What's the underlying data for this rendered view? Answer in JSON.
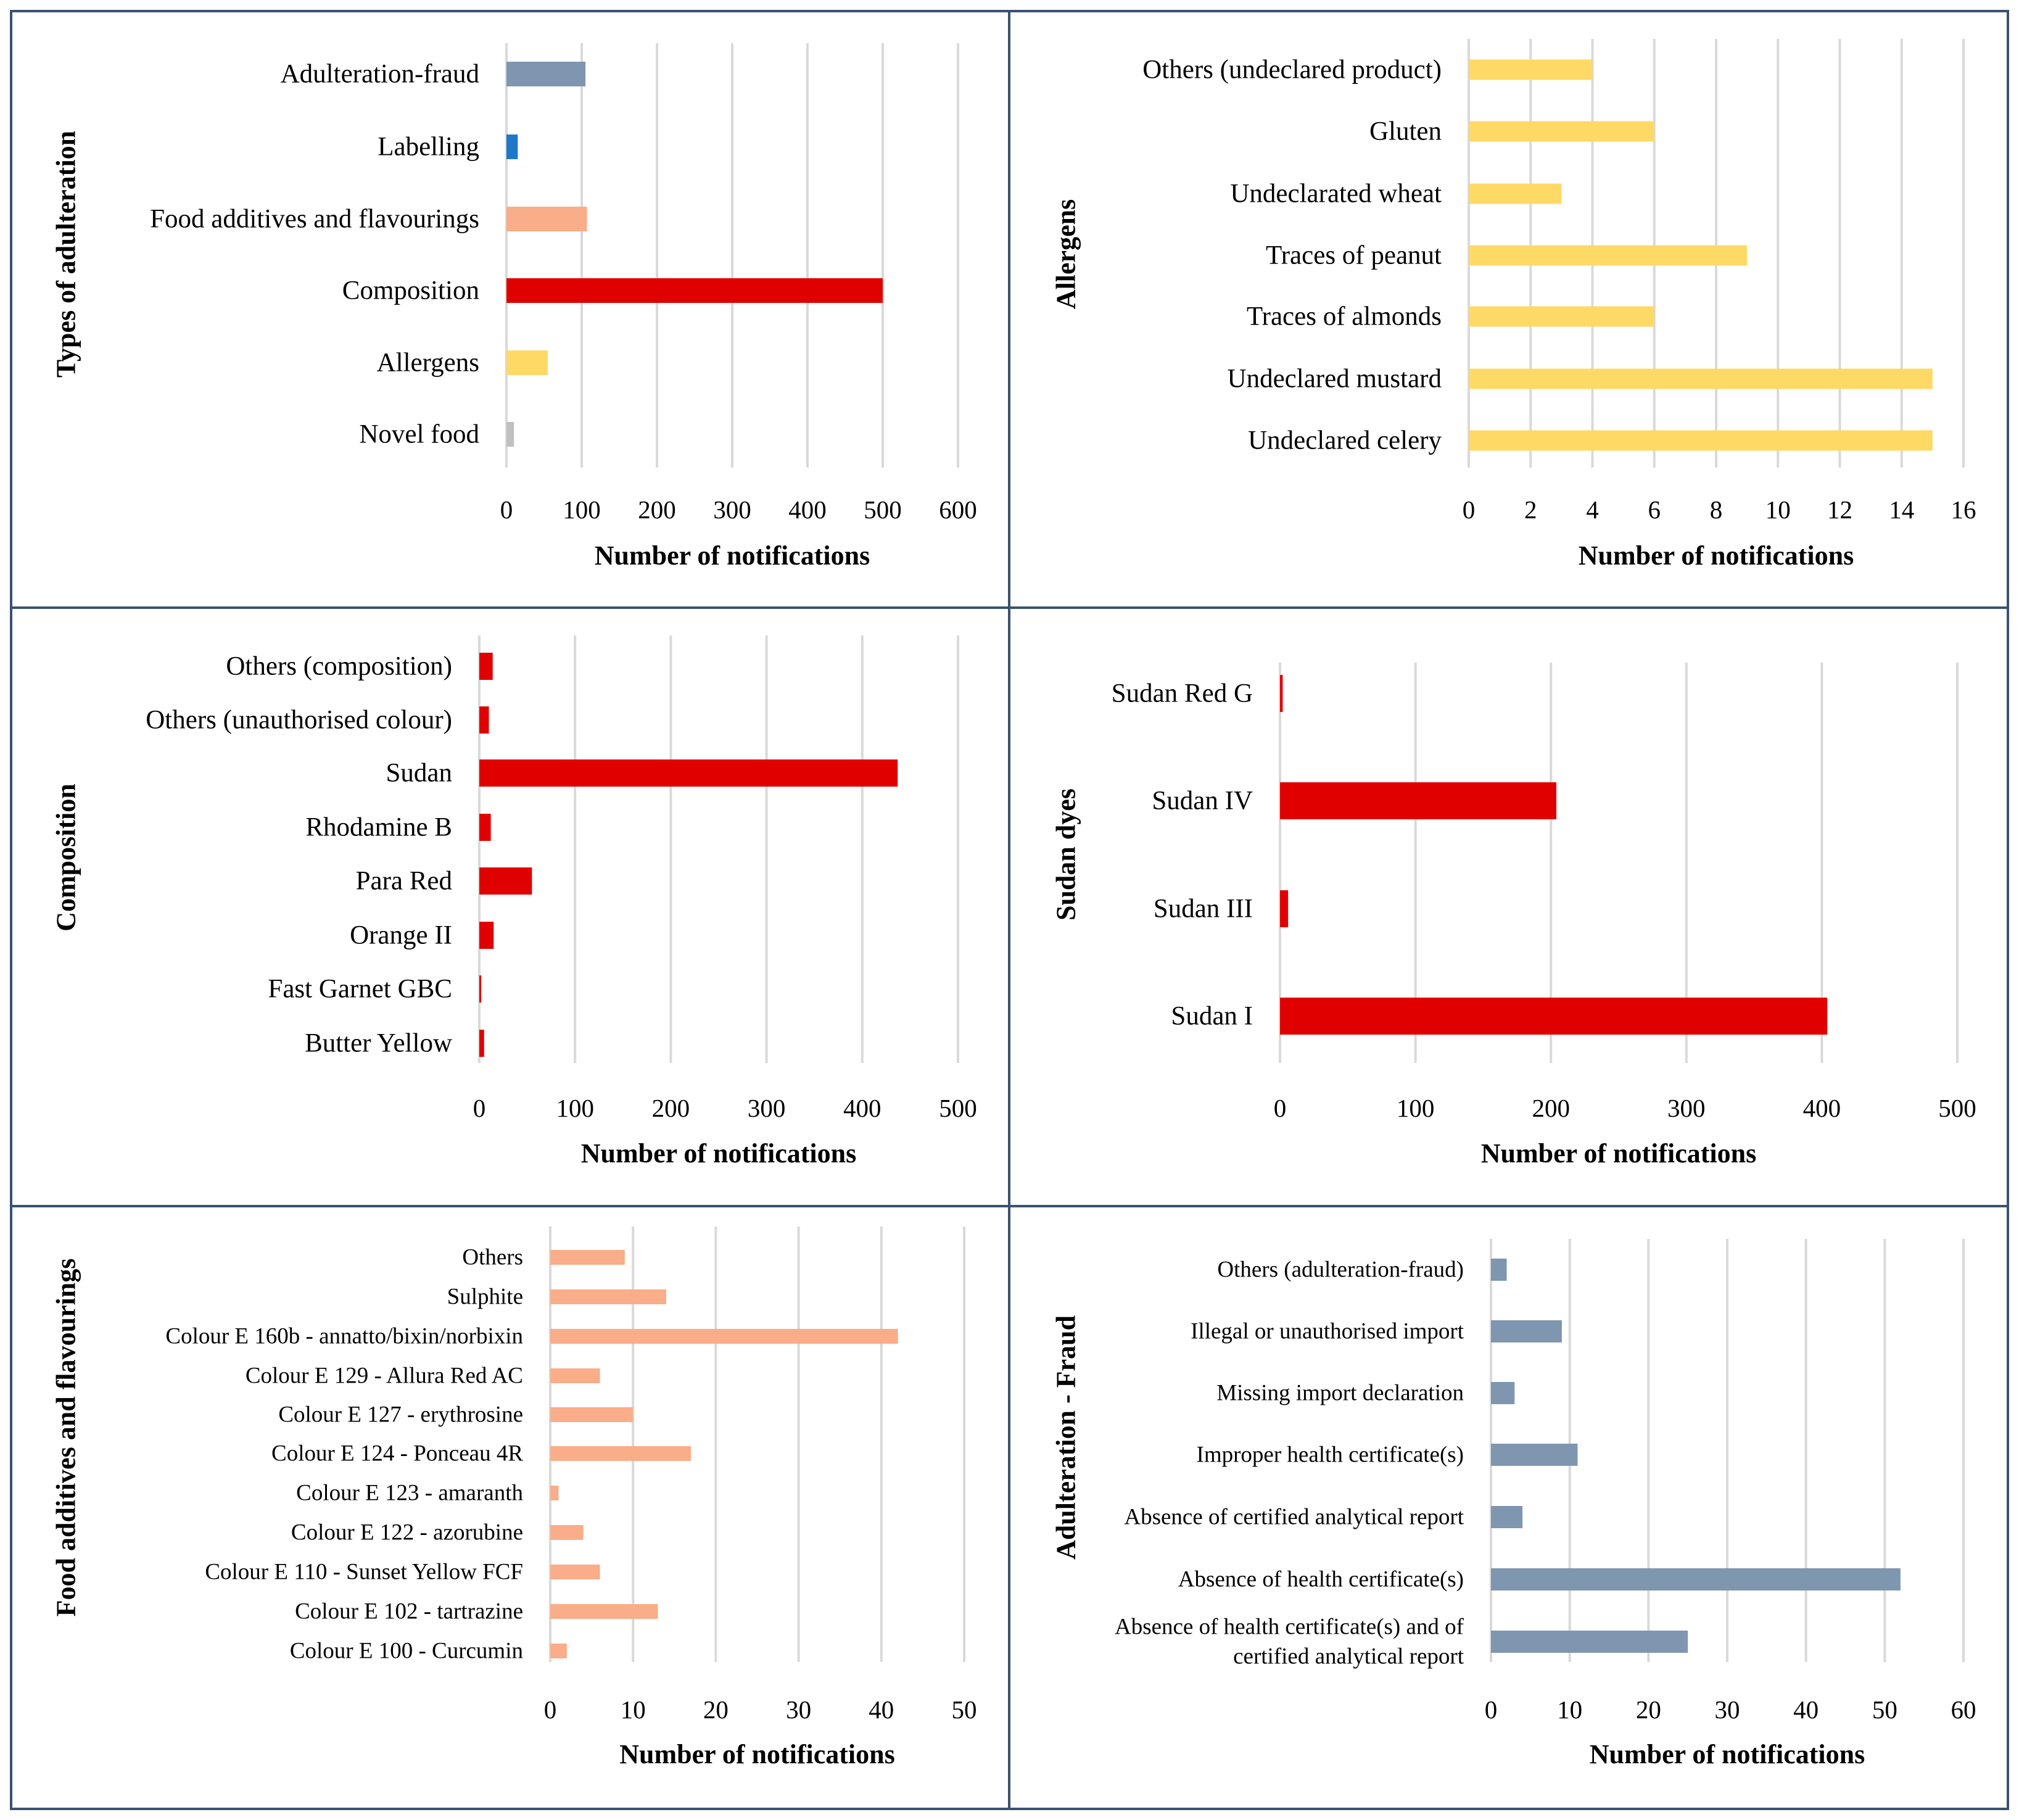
{
  "chart_data": [
    {
      "type": "bar",
      "orientation": "horizontal",
      "ylabel": "Types of adulteration",
      "xlabel": "Number of notifications",
      "categories": [
        "Adulteration-fraud",
        "Labelling",
        "Food additives and flavourings",
        "Composition",
        "Allergens",
        "Novel food"
      ],
      "values": [
        105,
        15,
        107,
        500,
        55,
        10
      ],
      "colors": [
        "#7f96b1",
        "#1f77c9",
        "#f9ad88",
        "#e00000",
        "#ffd966",
        "#c0c0c0"
      ],
      "xlim": [
        0,
        600
      ],
      "xticks": [
        "0",
        "100",
        "200",
        "300",
        "400",
        "500",
        "600"
      ],
      "grid": true
    },
    {
      "type": "bar",
      "orientation": "horizontal",
      "ylabel": "Allergens",
      "xlabel": "Number of notifications",
      "categories": [
        "Others (undeclared product)",
        "Gluten",
        "Undeclarated wheat",
        "Traces of peanut",
        "Traces of almonds",
        "Undeclared mustard",
        "Undeclared celery"
      ],
      "values": [
        4,
        6,
        3,
        9,
        6,
        15,
        15
      ],
      "color": "#ffd966",
      "xlim": [
        0,
        16
      ],
      "xticks": [
        "0",
        "2",
        "4",
        "6",
        "8",
        "10",
        "12",
        "14",
        "16"
      ],
      "grid": true
    },
    {
      "type": "bar",
      "orientation": "horizontal",
      "ylabel": "Composition",
      "xlabel": "Number of notifications",
      "categories": [
        "Others (composition)",
        "Others (unauthorised colour)",
        "Sudan",
        "Rhodamine B",
        "Para Red",
        "Orange II",
        "Fast Garnet GBC",
        "Butter Yellow"
      ],
      "values": [
        14,
        10,
        437,
        12,
        55,
        15,
        2,
        5
      ],
      "color": "#e00000",
      "xlim": [
        0,
        500
      ],
      "xticks": [
        "0",
        "100",
        "200",
        "300",
        "400",
        "500"
      ],
      "grid": true
    },
    {
      "type": "bar",
      "orientation": "horizontal",
      "ylabel": "Sudan dyes",
      "xlabel": "Number of notifications",
      "categories": [
        "Sudan Red G",
        "Sudan IV",
        "Sudan III",
        "Sudan I"
      ],
      "values": [
        2,
        204,
        6,
        404
      ],
      "color": "#e00000",
      "xlim": [
        0,
        500
      ],
      "xticks": [
        "0",
        "100",
        "200",
        "300",
        "400",
        "500"
      ],
      "grid": true
    },
    {
      "type": "bar",
      "orientation": "horizontal",
      "ylabel": "Food additives and flavourings",
      "xlabel": "Number of notifications",
      "categories": [
        "Others",
        "Sulphite",
        "Colour E 160b - annatto/bixin/norbixin",
        "Colour E 129 - Allura Red AC",
        "Colour E 127 - erythrosine",
        "Colour E 124 - Ponceau 4R",
        "Colour E 123 - amaranth",
        "Colour E 122 - azorubine",
        "Colour E 110 - Sunset Yellow FCF",
        "Colour E 102 - tartrazine",
        "Colour E 100 - Curcumin"
      ],
      "values": [
        9,
        14,
        42,
        6,
        10,
        17,
        1,
        4,
        6,
        13,
        2
      ],
      "color": "#f9ad88",
      "xlim": [
        0,
        50
      ],
      "xticks": [
        "0",
        "10",
        "20",
        "30",
        "40",
        "50"
      ],
      "grid": true
    },
    {
      "type": "bar",
      "orientation": "horizontal",
      "ylabel": "Adulteration - Fraud",
      "xlabel": "Number of notifications",
      "categories": [
        [
          "Others (adulteration-fraud)"
        ],
        [
          "Illegal or unauthorised import"
        ],
        [
          "Missing import declaration"
        ],
        [
          "Improper health certificate(s)"
        ],
        [
          "Absence of certified analytical report"
        ],
        [
          "Absence of health certificate(s)"
        ],
        [
          "Absence of health certificate(s) and of",
          "certified analytical report"
        ]
      ],
      "values": [
        2,
        9,
        3,
        11,
        4,
        52,
        25
      ],
      "color": "#7f96b1",
      "xlim": [
        0,
        60
      ],
      "xticks": [
        "0",
        "10",
        "20",
        "30",
        "40",
        "50",
        "60"
      ],
      "grid": true
    }
  ]
}
